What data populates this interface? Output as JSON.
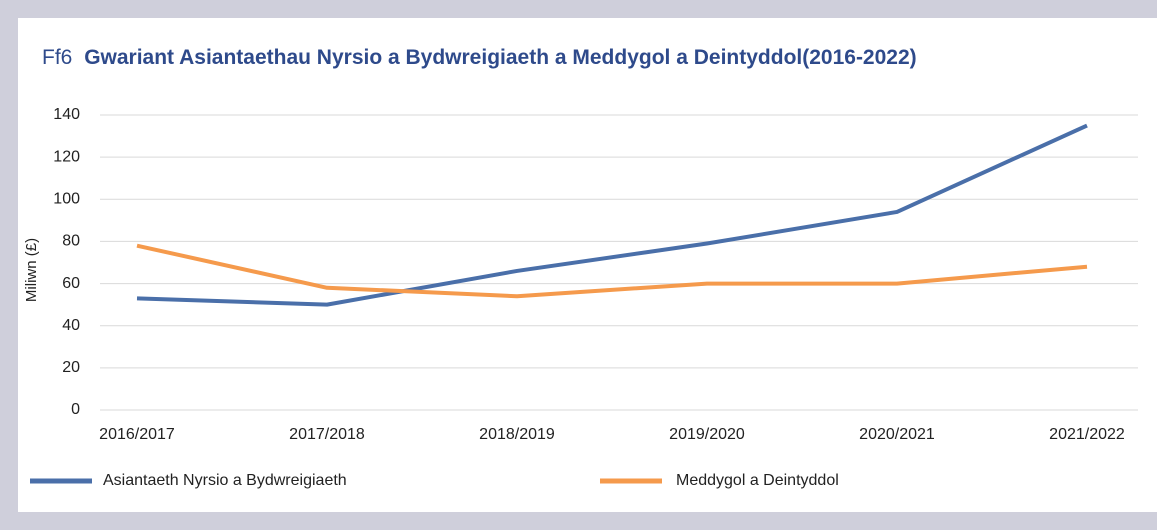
{
  "chart_data": {
    "type": "line",
    "figure_label": "Ff6",
    "title": "Gwariant Asiantaethau Nyrsio a Bydwreigiaeth a Meddygol a Deintyddol(2016-2022)",
    "ylabel": "Miliwn (£)",
    "categories": [
      "2016/2017",
      "2017/2018",
      "2018/2019",
      "2019/2020",
      "2020/2021",
      "2021/2022"
    ],
    "series": [
      {
        "name": "Asiantaeth Nyrsio a Bydwreigiaeth",
        "color": "#4a6fa9",
        "values": [
          53,
          50,
          66,
          79,
          94,
          135
        ]
      },
      {
        "name": "Meddygol a Deintyddol",
        "color": "#f59a4c",
        "values": [
          78,
          58,
          54,
          60,
          60,
          68
        ]
      }
    ],
    "ylim": [
      0,
      140
    ],
    "yticks": [
      0,
      20,
      40,
      60,
      80,
      100,
      120,
      140
    ],
    "grid": true,
    "legend": "bottom"
  }
}
